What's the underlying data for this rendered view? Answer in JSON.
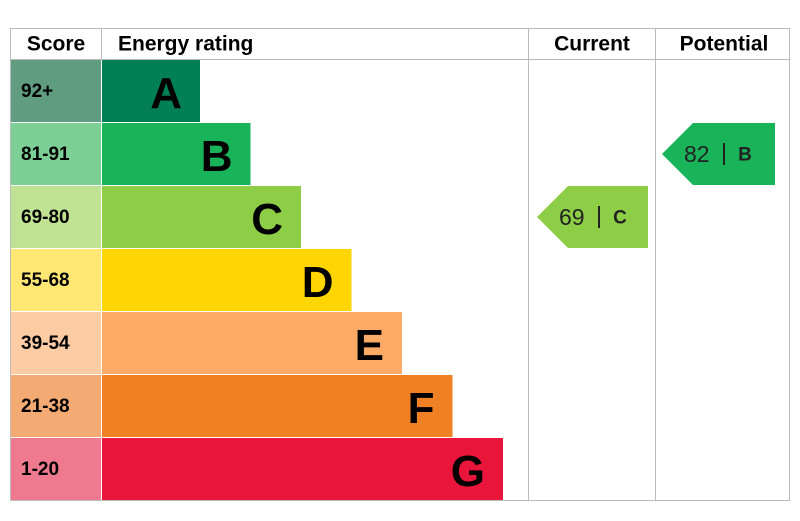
{
  "header": {
    "score": "Score",
    "energy_rating": "Energy rating",
    "current": "Current",
    "potential": "Potential"
  },
  "bands": [
    {
      "score": "92+",
      "letter": "A",
      "color": "#008054",
      "score_color": "#5f9c80"
    },
    {
      "score": "81-91",
      "letter": "B",
      "color": "#19b459",
      "score_color": "#7ccf95"
    },
    {
      "score": "69-80",
      "letter": "C",
      "color": "#8dce46",
      "score_color": "#bfe393"
    },
    {
      "score": "55-68",
      "letter": "D",
      "color": "#ffd500",
      "score_color": "#ffe773"
    },
    {
      "score": "39-54",
      "letter": "E",
      "color": "#fcaa65",
      "score_color": "#fdcca4"
    },
    {
      "score": "21-38",
      "letter": "F",
      "color": "#ef8023",
      "score_color": "#f4ab73"
    },
    {
      "score": "1-20",
      "letter": "G",
      "color": "#e9153b",
      "score_color": "#ef7a90"
    }
  ],
  "current": {
    "value": 69,
    "letter": "C"
  },
  "potential": {
    "value": 82,
    "letter": "B"
  }
}
